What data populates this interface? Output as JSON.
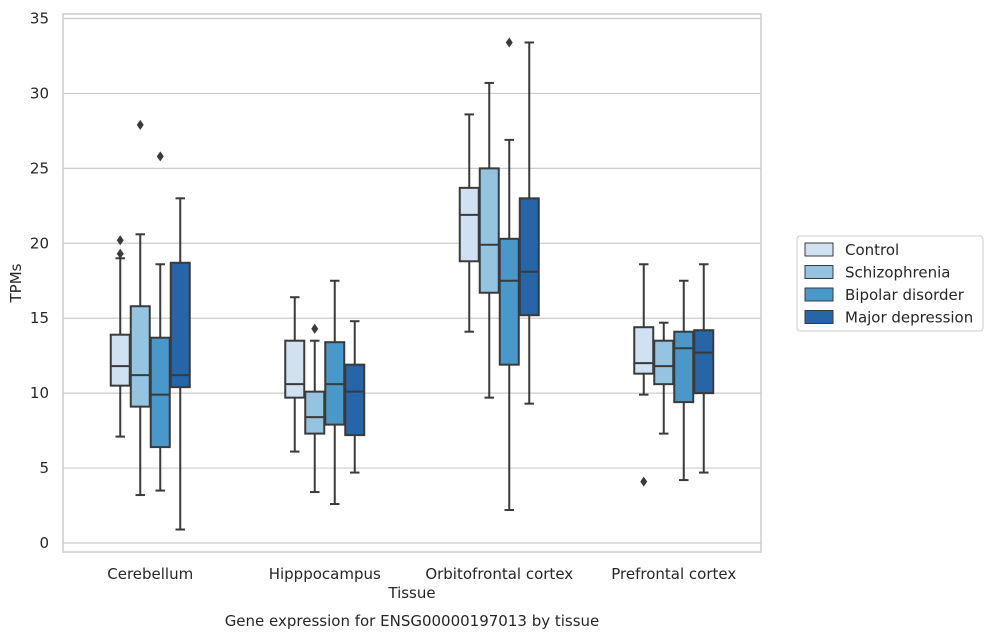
{
  "chart_data": {
    "type": "box",
    "xlabel": "Tissue",
    "ylabel": "TPMs",
    "caption": "Gene expression for ENSG00000197013 by tissue",
    "ylim": [
      -0.6,
      35.3
    ],
    "yticks": [
      0,
      5,
      10,
      15,
      20,
      25,
      30,
      35
    ],
    "grid": "horizontal",
    "legend_position": "right",
    "categories": [
      "Cerebellum",
      "Hipppocampus",
      "Orbitofrontal cortex",
      "Prefrontal cortex"
    ],
    "series": [
      {
        "name": "Control",
        "color": "#d0e1f2",
        "boxes": [
          {
            "whislo": 7.1,
            "q1": 10.5,
            "med": 11.8,
            "q3": 13.9,
            "whishi": 19.0,
            "fliers": [
              19.3,
              20.2
            ]
          },
          {
            "whislo": 6.1,
            "q1": 9.7,
            "med": 10.6,
            "q3": 13.5,
            "whishi": 16.4,
            "fliers": []
          },
          {
            "whislo": 14.1,
            "q1": 18.8,
            "med": 21.9,
            "q3": 23.7,
            "whishi": 28.6,
            "fliers": []
          },
          {
            "whislo": 9.9,
            "q1": 11.3,
            "med": 12.0,
            "q3": 14.4,
            "whishi": 18.6,
            "fliers": [
              4.1
            ]
          }
        ]
      },
      {
        "name": "Schizophrenia",
        "color": "#94c4df",
        "boxes": [
          {
            "whislo": 3.2,
            "q1": 9.1,
            "med": 11.2,
            "q3": 15.8,
            "whishi": 20.6,
            "fliers": [
              27.9
            ]
          },
          {
            "whislo": 3.4,
            "q1": 7.3,
            "med": 8.4,
            "q3": 10.1,
            "whishi": 13.5,
            "fliers": [
              14.3
            ]
          },
          {
            "whislo": 9.7,
            "q1": 16.7,
            "med": 19.9,
            "q3": 25.0,
            "whishi": 30.7,
            "fliers": []
          },
          {
            "whislo": 7.3,
            "q1": 10.6,
            "med": 11.8,
            "q3": 13.5,
            "whishi": 14.7,
            "fliers": []
          }
        ]
      },
      {
        "name": "Bipolar disorder",
        "color": "#4a98c9",
        "boxes": [
          {
            "whislo": 3.5,
            "q1": 6.4,
            "med": 9.9,
            "q3": 13.7,
            "whishi": 18.6,
            "fliers": [
              25.8
            ]
          },
          {
            "whislo": 2.6,
            "q1": 7.9,
            "med": 10.6,
            "q3": 13.4,
            "whishi": 17.5,
            "fliers": []
          },
          {
            "whislo": 2.2,
            "q1": 11.9,
            "med": 17.5,
            "q3": 20.3,
            "whishi": 26.9,
            "fliers": [
              33.4
            ]
          },
          {
            "whislo": 4.2,
            "q1": 9.4,
            "med": 13.0,
            "q3": 14.1,
            "whishi": 17.5,
            "fliers": []
          }
        ]
      },
      {
        "name": "Major depression",
        "color": "#2565a8",
        "boxes": [
          {
            "whislo": 0.9,
            "q1": 10.4,
            "med": 11.2,
            "q3": 18.7,
            "whishi": 23.0,
            "fliers": []
          },
          {
            "whislo": 4.7,
            "q1": 7.2,
            "med": 10.1,
            "q3": 11.9,
            "whishi": 14.8,
            "fliers": []
          },
          {
            "whislo": 9.3,
            "q1": 15.2,
            "med": 18.1,
            "q3": 23.0,
            "whishi": 33.4,
            "fliers": []
          },
          {
            "whislo": 4.7,
            "q1": 10.0,
            "med": 12.7,
            "q3": 14.2,
            "whishi": 18.6,
            "fliers": []
          }
        ]
      }
    ]
  }
}
